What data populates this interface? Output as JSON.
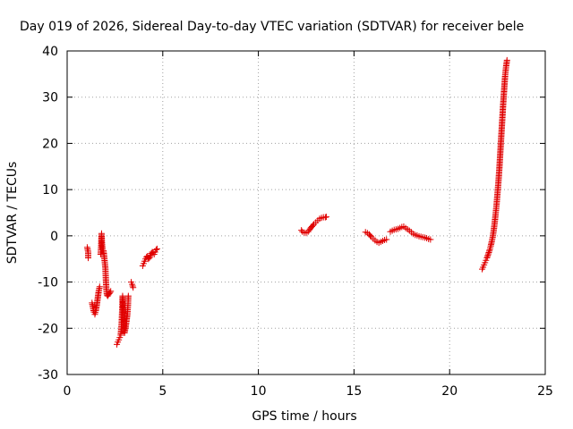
{
  "chart_data": {
    "type": "scatter",
    "title": "Day 019 of 2026, Sidereal Day-to-day VTEC variation (SDTVAR) for receiver bele",
    "xlabel": "GPS time / hours",
    "ylabel": "SDTVAR / TECUs",
    "xlim": [
      0,
      25
    ],
    "ylim": [
      -30,
      40
    ],
    "x_ticks": [
      0,
      5,
      10,
      15,
      20,
      25
    ],
    "y_ticks": [
      -30,
      -20,
      -10,
      0,
      10,
      20,
      30,
      40
    ],
    "grid": true,
    "marker": "+",
    "color": "#e00000",
    "series": [
      {
        "name": "SDTVAR",
        "segments": [
          [
            [
              1.05,
              -2.5
            ],
            [
              1.1,
              -3.5
            ],
            [
              1.1,
              -4.8
            ]
          ],
          [
            [
              1.3,
              -14.5
            ],
            [
              1.35,
              -15.5
            ],
            [
              1.4,
              -16.5
            ],
            [
              1.45,
              -17.0
            ],
            [
              1.5,
              -16.2
            ],
            [
              1.55,
              -15.0
            ],
            [
              1.6,
              -13.5
            ],
            [
              1.65,
              -12.0
            ],
            [
              1.7,
              -11.0
            ]
          ],
          [
            [
              1.75,
              -4.0
            ],
            [
              1.78,
              -2.0
            ],
            [
              1.8,
              0.5
            ],
            [
              1.82,
              -1.5
            ],
            [
              1.85,
              -2.8
            ],
            [
              1.9,
              -3.2
            ],
            [
              1.95,
              -5.0
            ],
            [
              2.0,
              -7.0
            ],
            [
              2.02,
              -9.0
            ],
            [
              2.05,
              -11.5
            ],
            [
              2.08,
              -12.8
            ],
            [
              2.12,
              -13.0
            ],
            [
              2.2,
              -12.5
            ],
            [
              2.28,
              -12.0
            ]
          ],
          [
            [
              2.6,
              -23.5
            ],
            [
              2.65,
              -23.0
            ],
            [
              2.7,
              -22.5
            ],
            [
              2.75,
              -22.0
            ],
            [
              2.8,
              -21.5
            ],
            [
              2.85,
              -19.0
            ],
            [
              2.88,
              -16.0
            ],
            [
              2.9,
              -13.0
            ],
            [
              2.93,
              -15.0
            ],
            [
              2.96,
              -18.0
            ],
            [
              3.0,
              -21.0
            ],
            [
              3.05,
              -20.0
            ],
            [
              3.1,
              -18.5
            ],
            [
              3.15,
              -17.0
            ],
            [
              3.18,
              -15.0
            ],
            [
              3.2,
              -13.0
            ]
          ],
          [
            [
              3.35,
              -10.0
            ],
            [
              3.4,
              -10.5
            ],
            [
              3.45,
              -11.2
            ]
          ],
          [
            [
              3.95,
              -6.5
            ],
            [
              4.0,
              -6.0
            ],
            [
              4.05,
              -5.5
            ],
            [
              4.1,
              -5.0
            ],
            [
              4.15,
              -4.6
            ],
            [
              4.2,
              -4.4
            ],
            [
              4.25,
              -5.0
            ],
            [
              4.3,
              -4.8
            ],
            [
              4.35,
              -4.2
            ],
            [
              4.4,
              -3.8
            ],
            [
              4.45,
              -3.5
            ],
            [
              4.5,
              -3.6
            ],
            [
              4.55,
              -4.0
            ],
            [
              4.6,
              -3.5
            ],
            [
              4.65,
              -3.0
            ],
            [
              4.7,
              -2.8
            ]
          ],
          [
            [
              12.25,
              1.2
            ],
            [
              12.3,
              0.9
            ],
            [
              12.4,
              0.7
            ],
            [
              12.5,
              0.6
            ],
            [
              12.6,
              0.9
            ],
            [
              12.7,
              1.5
            ],
            [
              12.8,
              2.0
            ],
            [
              12.9,
              2.5
            ],
            [
              13.0,
              2.9
            ],
            [
              13.1,
              3.3
            ],
            [
              13.2,
              3.7
            ],
            [
              13.3,
              3.9
            ],
            [
              13.4,
              4.0
            ],
            [
              13.5,
              4.0
            ],
            [
              13.55,
              4.1
            ]
          ],
          [
            [
              15.6,
              0.8
            ],
            [
              15.7,
              0.6
            ],
            [
              15.8,
              0.3
            ],
            [
              15.9,
              -0.2
            ],
            [
              16.0,
              -0.6
            ],
            [
              16.1,
              -1.0
            ],
            [
              16.2,
              -1.3
            ],
            [
              16.3,
              -1.5
            ],
            [
              16.4,
              -1.3
            ],
            [
              16.5,
              -1.1
            ],
            [
              16.6,
              -0.9
            ],
            [
              16.7,
              -0.8
            ]
          ],
          [
            [
              16.9,
              0.9
            ],
            [
              17.0,
              1.1
            ],
            [
              17.1,
              1.3
            ],
            [
              17.2,
              1.4
            ],
            [
              17.3,
              1.5
            ],
            [
              17.4,
              1.7
            ],
            [
              17.5,
              1.9
            ],
            [
              17.6,
              2.0
            ],
            [
              17.7,
              1.7
            ],
            [
              17.8,
              1.4
            ],
            [
              17.9,
              1.1
            ],
            [
              18.0,
              0.8
            ],
            [
              18.1,
              0.4
            ],
            [
              18.2,
              0.2
            ],
            [
              18.3,
              0.1
            ],
            [
              18.4,
              -0.1
            ],
            [
              18.5,
              -0.2
            ],
            [
              18.6,
              -0.3
            ],
            [
              18.7,
              -0.4
            ],
            [
              18.8,
              -0.5
            ],
            [
              18.9,
              -0.7
            ],
            [
              19.0,
              -0.8
            ]
          ],
          [
            [
              21.7,
              -7.2
            ],
            [
              21.75,
              -6.8
            ],
            [
              21.8,
              -6.3
            ],
            [
              21.85,
              -5.8
            ],
            [
              21.9,
              -5.3
            ],
            [
              21.95,
              -4.8
            ],
            [
              22.0,
              -4.2
            ],
            [
              22.05,
              -3.6
            ],
            [
              22.1,
              -3.0
            ],
            [
              22.15,
              -2.2
            ],
            [
              22.2,
              -1.3
            ],
            [
              22.25,
              -0.3
            ],
            [
              22.3,
              1.0
            ],
            [
              22.35,
              2.6
            ],
            [
              22.4,
              4.5
            ],
            [
              22.45,
              6.5
            ],
            [
              22.5,
              9.0
            ],
            [
              22.55,
              11.5
            ],
            [
              22.6,
              14.5
            ],
            [
              22.65,
              18.0
            ],
            [
              22.7,
              21.5
            ],
            [
              22.75,
              25.0
            ],
            [
              22.8,
              28.5
            ],
            [
              22.85,
              31.5
            ],
            [
              22.9,
              34.5
            ],
            [
              22.95,
              36.5
            ],
            [
              23.0,
              38.0
            ]
          ]
        ]
      }
    ]
  }
}
